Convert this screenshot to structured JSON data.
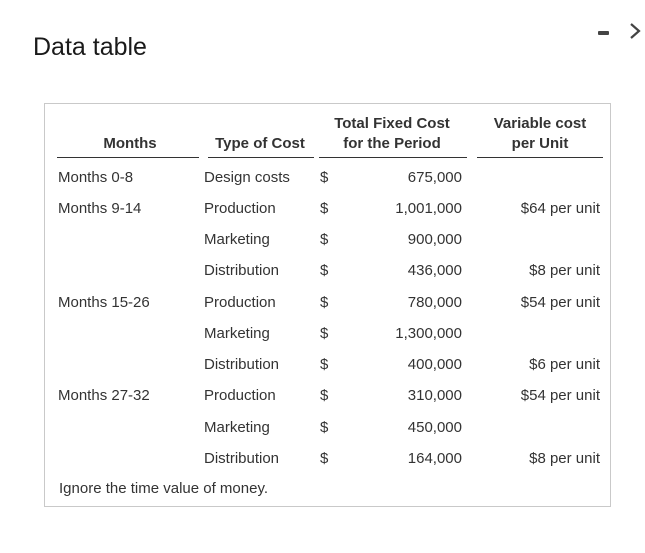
{
  "title": "Data table",
  "controls": {
    "minimize_icon": "minimize-icon",
    "next_icon": "chevron-right-icon"
  },
  "table": {
    "headers": {
      "months": "Months",
      "type": "Type of Cost",
      "fixed_line1": "Total Fixed Cost",
      "fixed_line2": "for the Period",
      "variable_line1": "Variable cost",
      "variable_line2": "per Unit"
    },
    "rows": [
      {
        "months": "Months 0-8",
        "type": "Design costs",
        "currency": "$",
        "fixed": "675,000",
        "variable": ""
      },
      {
        "months": "Months 9-14",
        "type": "Production",
        "currency": "$",
        "fixed": "1,001,000",
        "variable": "$64 per unit"
      },
      {
        "months": "",
        "type": "Marketing",
        "currency": "$",
        "fixed": "900,000",
        "variable": ""
      },
      {
        "months": "",
        "type": "Distribution",
        "currency": "$",
        "fixed": "436,000",
        "variable": "$8 per unit"
      },
      {
        "months": "Months 15-26",
        "type": "Production",
        "currency": "$",
        "fixed": "780,000",
        "variable": "$54 per unit"
      },
      {
        "months": "",
        "type": "Marketing",
        "currency": "$",
        "fixed": "1,300,000",
        "variable": ""
      },
      {
        "months": "",
        "type": "Distribution",
        "currency": "$",
        "fixed": "400,000",
        "variable": "$6 per unit"
      },
      {
        "months": "Months 27-32",
        "type": "Production",
        "currency": "$",
        "fixed": "310,000",
        "variable": "$54 per unit"
      },
      {
        "months": "",
        "type": "Marketing",
        "currency": "$",
        "fixed": "450,000",
        "variable": ""
      },
      {
        "months": "",
        "type": "Distribution",
        "currency": "$",
        "fixed": "164,000",
        "variable": "$8 per unit"
      }
    ],
    "note": "Ignore the time value of money."
  }
}
